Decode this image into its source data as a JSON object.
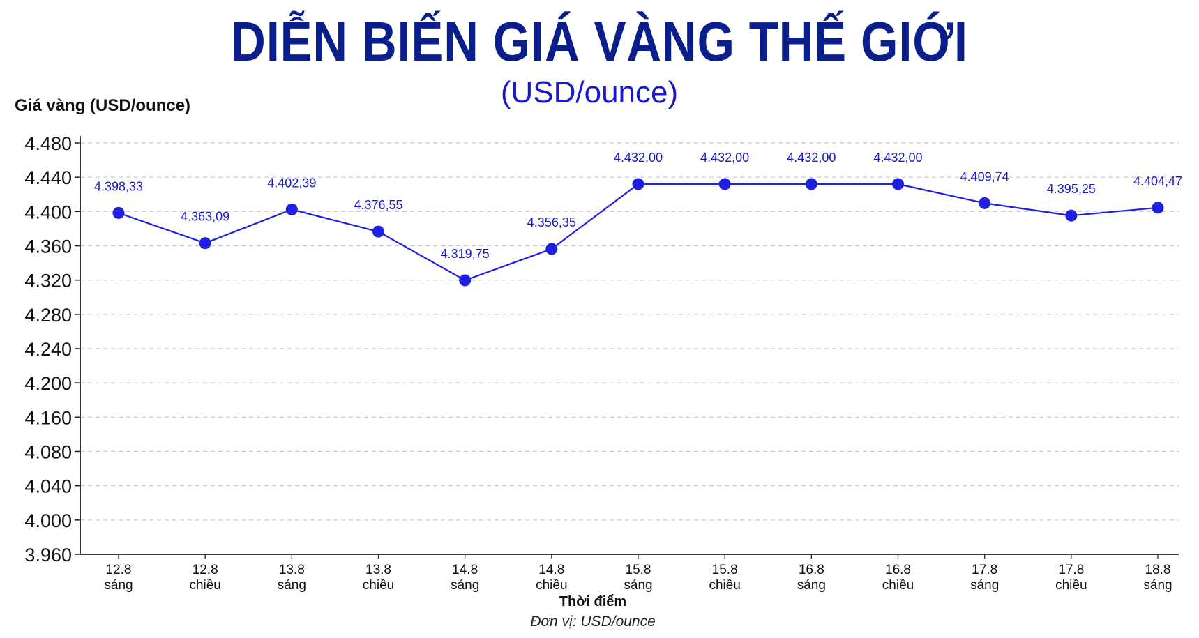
{
  "chart_data": {
    "type": "line",
    "title": "DIỄN BIẾN GIÁ VÀNG THẾ GIỚI",
    "subtitle": "(USD/ounce)",
    "ylabel": "Giá vàng (USD/ounce)",
    "xlabel": "Thời điểm",
    "unit_note": "Đơn vị: USD/ounce",
    "categories": [
      [
        "12.8",
        "sáng"
      ],
      [
        "12.8",
        "chiều"
      ],
      [
        "13.8",
        "sáng"
      ],
      [
        "13.8",
        "chiều"
      ],
      [
        "14.8",
        "sáng"
      ],
      [
        "14.8",
        "chiều"
      ],
      [
        "15.8",
        "sáng"
      ],
      [
        "15.8",
        "chiều"
      ],
      [
        "16.8",
        "sáng"
      ],
      [
        "16.8",
        "chiều"
      ],
      [
        "17.8",
        "sáng"
      ],
      [
        "17.8",
        "chiều"
      ],
      [
        "18.8",
        "sáng"
      ]
    ],
    "values": [
      4398.33,
      4363.09,
      4402.39,
      4376.55,
      4319.75,
      4356.35,
      4432.0,
      4432.0,
      4432.0,
      4432.0,
      4409.74,
      4395.25,
      4404.47
    ],
    "value_labels": [
      "4.398,33",
      "4.363,09",
      "4.402,39",
      "4.376,55",
      "4.319,75",
      "4.356,35",
      "4.432,00",
      "4.432,00",
      "4.432,00",
      "4.432,00",
      "4.409,74",
      "4.395,25",
      "4.404,47"
    ],
    "y_ticks": [
      "3.960",
      "4.000",
      "4.040",
      "4.080",
      "4.160",
      "4.200",
      "4.240",
      "4.280",
      "4.320",
      "4.360",
      "4.400",
      "4.440",
      "4.480"
    ],
    "ylim": [
      3960,
      4480
    ],
    "grid": true,
    "legend": "none",
    "colors": {
      "line": "#1f1fe0",
      "marker": "#1f1fe0",
      "label": "#1a1acc",
      "title": "#0a1e8c",
      "grid": "#c8c8c8",
      "axis": "#222222"
    }
  }
}
